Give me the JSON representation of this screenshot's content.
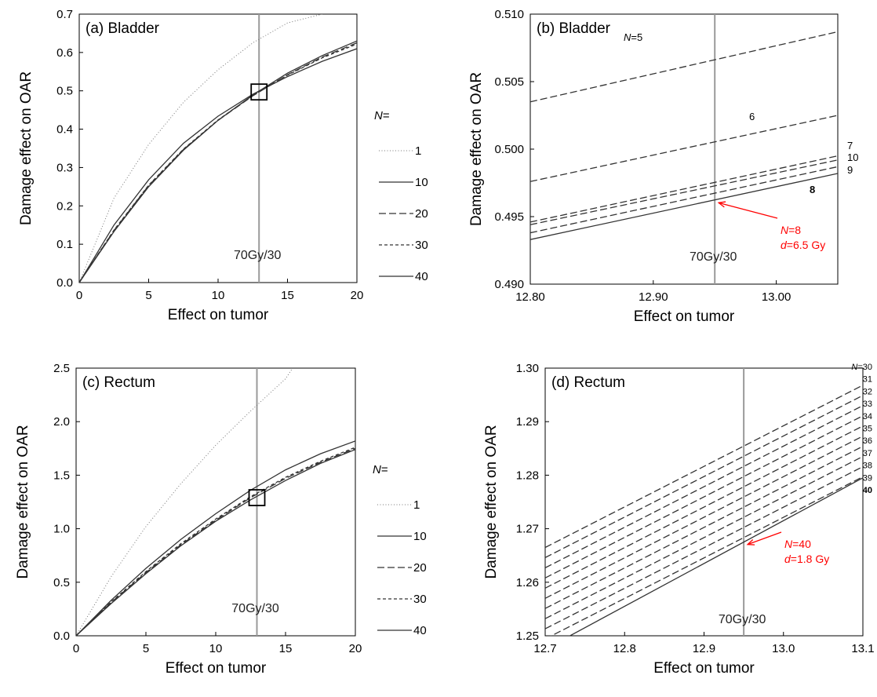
{
  "chart_data": [
    {
      "panel": "a",
      "type": "line",
      "title": "(a) Bladder",
      "xlabel": "Effect on tumor",
      "ylabel": "Damage effect on OAR",
      "xlim": [
        0,
        20
      ],
      "ylim": [
        0,
        0.7
      ],
      "xticks": [
        0,
        5,
        10,
        15,
        20
      ],
      "yticks": [
        0.0,
        0.1,
        0.2,
        0.3,
        0.4,
        0.5,
        0.6,
        0.7
      ],
      "xtick_labels": [
        "0",
        "5",
        "10",
        "15",
        "20"
      ],
      "ytick_labels": [
        "0.0",
        "0.1",
        "0.2",
        "0.3",
        "0.4",
        "0.5",
        "0.6",
        "0.7"
      ],
      "vline": {
        "x": 12.95,
        "label": "70Gy/30"
      },
      "marker_box": {
        "x": 12.95,
        "y": 0.497
      },
      "legend": {
        "title": "N=",
        "placement": "right"
      },
      "grid": false,
      "series": [
        {
          "name": "1",
          "style": "dotted",
          "x": [
            0,
            2.5,
            5,
            7.5,
            10,
            12.5,
            15,
            17.5
          ],
          "y": [
            0,
            0.22,
            0.36,
            0.47,
            0.555,
            0.625,
            0.677,
            0.7
          ]
        },
        {
          "name": "10",
          "style": "solid",
          "x": [
            0,
            2.5,
            5,
            7.5,
            10,
            12.5,
            15,
            17.5,
            20
          ],
          "y": [
            0,
            0.15,
            0.268,
            0.363,
            0.434,
            0.491,
            0.537,
            0.577,
            0.61
          ]
        },
        {
          "name": "20",
          "style": "dashed",
          "x": [
            0,
            2.5,
            5,
            7.5,
            10,
            12.5,
            15,
            17.5,
            20
          ],
          "y": [
            0,
            0.136,
            0.253,
            0.347,
            0.423,
            0.487,
            0.542,
            0.588,
            0.625
          ]
        },
        {
          "name": "30",
          "style": "short-dashed",
          "x": [
            0,
            2.5,
            5,
            7.5,
            10,
            12.5,
            15,
            17.5,
            20
          ],
          "y": [
            0,
            0.137,
            0.254,
            0.348,
            0.424,
            0.488,
            0.541,
            0.586,
            0.622
          ]
        },
        {
          "name": "40",
          "style": "solid",
          "x": [
            0,
            2.5,
            5,
            7.5,
            10,
            12.5,
            15,
            17.5,
            20
          ],
          "y": [
            0,
            0.133,
            0.25,
            0.345,
            0.423,
            0.489,
            0.546,
            0.592,
            0.63
          ]
        }
      ]
    },
    {
      "panel": "b",
      "type": "line",
      "title": "(b) Bladder",
      "xlabel": "Effect on tumor",
      "ylabel": "Damage effect on OAR",
      "xlim": [
        12.8,
        13.05
      ],
      "ylim": [
        0.49,
        0.51
      ],
      "xticks": [
        12.8,
        12.9,
        13.0
      ],
      "yticks": [
        0.49,
        0.495,
        0.5,
        0.505,
        0.51
      ],
      "xtick_labels": [
        "12.80",
        "12.90",
        "13.00"
      ],
      "ytick_labels": [
        "0.490",
        "0.495",
        "0.500",
        "0.505",
        "0.510"
      ],
      "vline": {
        "x": 12.95,
        "label": "70Gy/30"
      },
      "grid": false,
      "series": [
        {
          "name": "N=5",
          "style": "dashed",
          "x": [
            12.8,
            13.05
          ],
          "y": [
            0.5035,
            0.5087
          ]
        },
        {
          "name": "6",
          "style": "dashed",
          "x": [
            12.8,
            13.05
          ],
          "y": [
            0.4976,
            0.5025
          ]
        },
        {
          "name": "7",
          "style": "dashed",
          "x": [
            12.8,
            13.05
          ],
          "y": [
            0.4946,
            0.4995
          ]
        },
        {
          "name": "10",
          "style": "dashed",
          "x": [
            12.8,
            13.05
          ],
          "y": [
            0.4944,
            0.4992
          ]
        },
        {
          "name": "9",
          "style": "dashed",
          "x": [
            12.8,
            13.05
          ],
          "y": [
            0.4938,
            0.4987
          ]
        },
        {
          "name": "8",
          "style": "solid",
          "x": [
            12.8,
            13.05
          ],
          "y": [
            0.4933,
            0.4982
          ]
        }
      ],
      "annotation": {
        "lines": [
          "N=8",
          "d=6.5 Gy"
        ],
        "color": "#ff0000",
        "points_to": {
          "x": 12.95,
          "y": 0.4962
        }
      }
    },
    {
      "panel": "c",
      "type": "line",
      "title": "(c) Rectum",
      "xlabel": "Effect on tumor",
      "ylabel": "Damage effect on OAR",
      "xlim": [
        0,
        20
      ],
      "ylim": [
        0,
        2.5
      ],
      "xticks": [
        0,
        5,
        10,
        15,
        20
      ],
      "yticks": [
        0.0,
        0.5,
        1.0,
        1.5,
        2.0,
        2.5
      ],
      "xtick_labels": [
        "0",
        "5",
        "10",
        "15",
        "20"
      ],
      "ytick_labels": [
        "0.0",
        "0.5",
        "1.0",
        "1.5",
        "2.0",
        "2.5"
      ],
      "vline": {
        "x": 12.95,
        "label": "70Gy/30"
      },
      "marker_box": {
        "x": 12.95,
        "y": 1.29
      },
      "legend": {
        "title": "N=",
        "placement": "right"
      },
      "grid": false,
      "series": [
        {
          "name": "1",
          "style": "dotted",
          "x": [
            0,
            2.5,
            5,
            7.5,
            10,
            12.5,
            15,
            15.5
          ],
          "y": [
            0,
            0.55,
            1.02,
            1.42,
            1.78,
            2.1,
            2.4,
            2.5
          ]
        },
        {
          "name": "10",
          "style": "solid",
          "x": [
            0,
            2.5,
            5,
            7.5,
            10,
            12.5,
            15,
            17.5,
            20
          ],
          "y": [
            0,
            0.33,
            0.63,
            0.9,
            1.14,
            1.36,
            1.55,
            1.7,
            1.82
          ]
        },
        {
          "name": "20",
          "style": "dashed",
          "x": [
            0,
            2.5,
            5,
            7.5,
            10,
            12.5,
            15,
            17.5,
            20
          ],
          "y": [
            0,
            0.31,
            0.59,
            0.85,
            1.08,
            1.29,
            1.47,
            1.62,
            1.75
          ]
        },
        {
          "name": "30",
          "style": "short-dashed",
          "x": [
            0,
            2.5,
            5,
            7.5,
            10,
            12.5,
            15,
            17.5,
            20
          ],
          "y": [
            0,
            0.315,
            0.6,
            0.86,
            1.09,
            1.3,
            1.48,
            1.63,
            1.76
          ]
        },
        {
          "name": "40",
          "style": "solid",
          "x": [
            0,
            2.5,
            5,
            7.5,
            10,
            12.5,
            15,
            17.5,
            20
          ],
          "y": [
            0,
            0.3,
            0.58,
            0.84,
            1.07,
            1.27,
            1.45,
            1.61,
            1.74
          ]
        }
      ]
    },
    {
      "panel": "d",
      "type": "line",
      "title": "(d) Rectum",
      "xlabel": "Effect on tumor",
      "ylabel": "Damage effect on OAR",
      "xlim": [
        12.7,
        13.1
      ],
      "ylim": [
        1.25,
        1.3
      ],
      "xticks": [
        12.7,
        12.8,
        12.9,
        13.0,
        13.1
      ],
      "yticks": [
        1.25,
        1.26,
        1.27,
        1.28,
        1.29,
        1.3
      ],
      "xtick_labels": [
        "12.7",
        "12.8",
        "12.9",
        "13.0",
        "13.1"
      ],
      "ytick_labels": [
        "1.25",
        "1.26",
        "1.27",
        "1.28",
        "1.29",
        "1.30"
      ],
      "vline": {
        "x": 12.95,
        "label": "70Gy/30"
      },
      "grid": false,
      "series": [
        {
          "name": "N=30",
          "style": "dashed",
          "x": [
            12.7,
            13.1
          ],
          "y": [
            1.2665,
            1.2968
          ]
        },
        {
          "name": "31",
          "style": "dashed",
          "x": [
            12.7,
            13.1
          ],
          "y": [
            1.2646,
            1.2949
          ]
        },
        {
          "name": "32",
          "style": "dashed",
          "x": [
            12.7,
            13.1
          ],
          "y": [
            1.2627,
            1.293
          ]
        },
        {
          "name": "33",
          "style": "dashed",
          "x": [
            12.7,
            13.1
          ],
          "y": [
            1.2608,
            1.2911
          ]
        },
        {
          "name": "34",
          "style": "dashed",
          "x": [
            12.7,
            13.1
          ],
          "y": [
            1.2589,
            1.2892
          ]
        },
        {
          "name": "35",
          "style": "dashed",
          "x": [
            12.7,
            13.1
          ],
          "y": [
            1.257,
            1.2873
          ]
        },
        {
          "name": "36",
          "style": "dashed",
          "x": [
            12.7,
            13.1
          ],
          "y": [
            1.2551,
            1.2854
          ]
        },
        {
          "name": "37",
          "style": "dashed",
          "x": [
            12.7,
            13.1
          ],
          "y": [
            1.2532,
            1.2835
          ]
        },
        {
          "name": "38",
          "style": "dashed",
          "x": [
            12.7,
            13.1
          ],
          "y": [
            1.2513,
            1.2816
          ]
        },
        {
          "name": "39",
          "style": "dashed",
          "x": [
            12.7,
            13.1
          ],
          "y": [
            1.2494,
            1.2797
          ]
        },
        {
          "name": "40",
          "style": "solid",
          "x": [
            12.7,
            13.1
          ],
          "y": [
            1.2475,
            1.2795
          ]
        }
      ],
      "annotation": {
        "lines": [
          "N=40",
          "d=1.8 Gy"
        ],
        "color": "#ff0000",
        "points_to": {
          "x": 12.95,
          "y": 1.2675
        }
      }
    }
  ]
}
